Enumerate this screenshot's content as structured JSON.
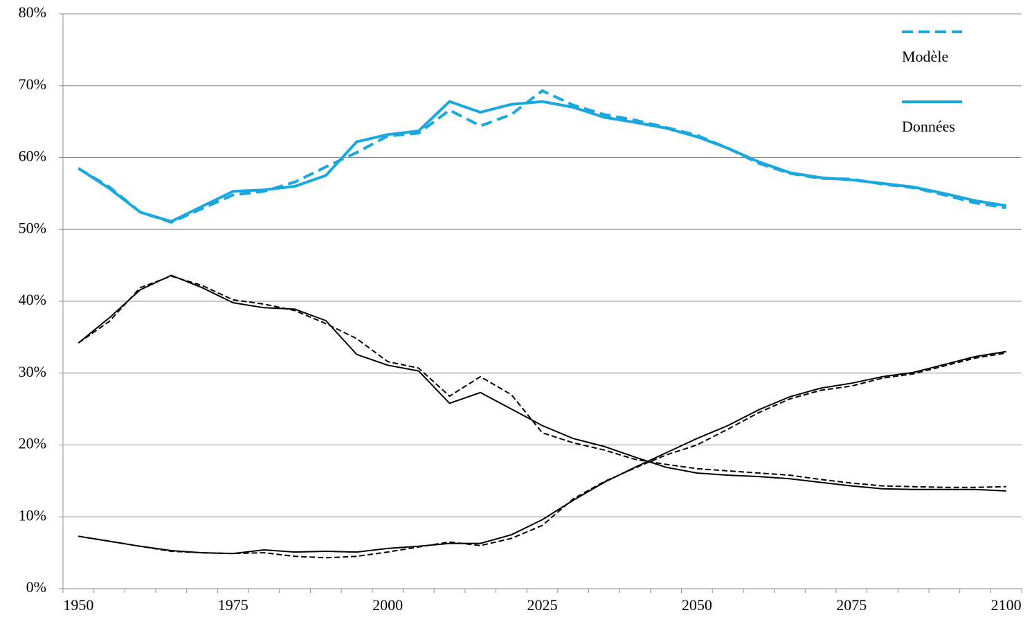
{
  "chart_data": {
    "type": "line",
    "categories": [
      1950,
      null,
      null,
      null,
      null,
      1975,
      null,
      null,
      null,
      null,
      2000,
      null,
      null,
      null,
      null,
      2025,
      null,
      null,
      null,
      null,
      2050,
      null,
      null,
      null,
      null,
      2075,
      null,
      null,
      null,
      null,
      2100
    ],
    "series": [
      {
        "name": "Modèle",
        "color": "#1aa7e0",
        "style": "dashed",
        "values": [
          58.5,
          55.9,
          52.4,
          51.0,
          52.9,
          54.8,
          55.3,
          56.6,
          58.7,
          60.7,
          63.0,
          63.4,
          66.6,
          64.4,
          66.0,
          69.3,
          67.3,
          66.0,
          65.2,
          64.2,
          63.1,
          61.3,
          59.2,
          57.8,
          57.1,
          57.0,
          56.3,
          55.8,
          54.8,
          53.7,
          53.0
        ]
      },
      {
        "name": "Données",
        "color": "#1aa7e0",
        "style": "solid",
        "values": [
          58.5,
          55.7,
          52.4,
          51.1,
          53.2,
          55.3,
          55.5,
          56.0,
          57.5,
          62.2,
          63.2,
          63.7,
          67.8,
          66.3,
          67.4,
          67.8,
          67.0,
          65.6,
          64.9,
          64.1,
          62.9,
          61.3,
          59.4,
          57.9,
          57.2,
          56.9,
          56.4,
          55.9,
          55.0,
          54.0,
          53.3
        ]
      },
      {
        "color": "#000000",
        "style": "solid",
        "values": [
          34.2,
          37.7,
          41.6,
          43.6,
          41.9,
          39.8,
          39.1,
          38.9,
          37.3,
          32.6,
          31.1,
          30.3,
          25.8,
          27.3,
          25.0,
          22.7,
          20.9,
          19.8,
          18.3,
          16.9,
          16.1,
          15.8,
          15.6,
          15.3,
          14.8,
          14.3,
          13.9,
          13.8,
          13.8,
          13.8,
          13.6
        ]
      },
      {
        "color": "#000000",
        "style": "dashed",
        "values": [
          34.2,
          37.2,
          41.9,
          43.5,
          42.2,
          40.2,
          39.6,
          38.7,
          36.9,
          34.8,
          31.6,
          30.7,
          26.8,
          29.5,
          27.0,
          21.7,
          20.3,
          19.3,
          18.0,
          17.3,
          16.7,
          16.4,
          16.1,
          15.8,
          15.2,
          14.7,
          14.3,
          14.2,
          14.1,
          14.1,
          14.2
        ]
      },
      {
        "color": "#000000",
        "style": "solid",
        "values": [
          7.3,
          6.6,
          5.9,
          5.3,
          5.0,
          4.9,
          5.4,
          5.1,
          5.2,
          5.1,
          5.6,
          5.9,
          6.3,
          6.3,
          7.5,
          9.6,
          12.3,
          14.8,
          16.9,
          18.9,
          20.9,
          22.7,
          24.9,
          26.7,
          27.9,
          28.6,
          29.5,
          30.1,
          31.2,
          32.3,
          33.0
        ]
      },
      {
        "color": "#000000",
        "style": "dashed",
        "values": [
          7.3,
          6.6,
          5.9,
          5.2,
          5.0,
          4.9,
          5.0,
          4.5,
          4.3,
          4.5,
          5.1,
          5.8,
          6.5,
          6.0,
          7.0,
          8.8,
          12.5,
          14.9,
          16.8,
          18.6,
          20.0,
          22.2,
          24.5,
          26.4,
          27.6,
          28.2,
          29.3,
          29.9,
          31.0,
          32.1,
          32.8
        ]
      }
    ],
    "ylim": [
      0,
      80
    ],
    "yticks": [
      {
        "value": 0,
        "label": "0%"
      },
      {
        "value": 10,
        "label": "10%"
      },
      {
        "value": 20,
        "label": "20%"
      },
      {
        "value": 30,
        "label": "30%"
      },
      {
        "value": 40,
        "label": "40%"
      },
      {
        "value": 50,
        "label": "50%"
      },
      {
        "value": 60,
        "label": "60%"
      },
      {
        "value": 70,
        "label": "70%"
      },
      {
        "value": 80,
        "label": "80%"
      }
    ],
    "grid": true,
    "legend": "upper right"
  }
}
